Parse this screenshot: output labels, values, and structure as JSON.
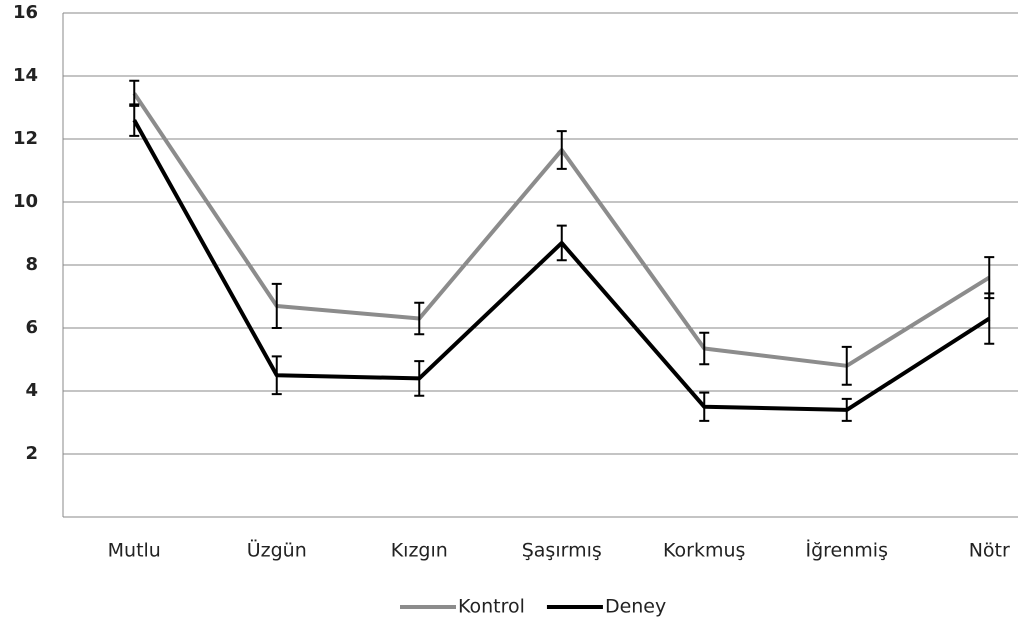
{
  "chart_data": {
    "type": "line",
    "categories": [
      "Mutlu",
      "Üzgün",
      "Kızgın",
      "Şaşırmış",
      "Korkmuş",
      "İğrenmiş",
      "Nötr"
    ],
    "series": [
      {
        "name": "Kontrol",
        "color": "#8c8c8c",
        "values": [
          13.45,
          6.7,
          6.3,
          11.65,
          5.35,
          4.8,
          7.6
        ],
        "errors": [
          0.4,
          0.7,
          0.5,
          0.6,
          0.5,
          0.6,
          0.65
        ]
      },
      {
        "name": "Deney",
        "color": "#000000",
        "values": [
          12.6,
          4.5,
          4.4,
          8.7,
          3.5,
          3.4,
          6.3
        ],
        "errors": [
          0.5,
          0.6,
          0.55,
          0.55,
          0.45,
          0.35,
          0.8
        ]
      }
    ],
    "ylim": [
      0,
      16
    ],
    "yticks": [
      2,
      4,
      6,
      8,
      10,
      12,
      14,
      16
    ],
    "grid": true,
    "legend": "bottom"
  }
}
